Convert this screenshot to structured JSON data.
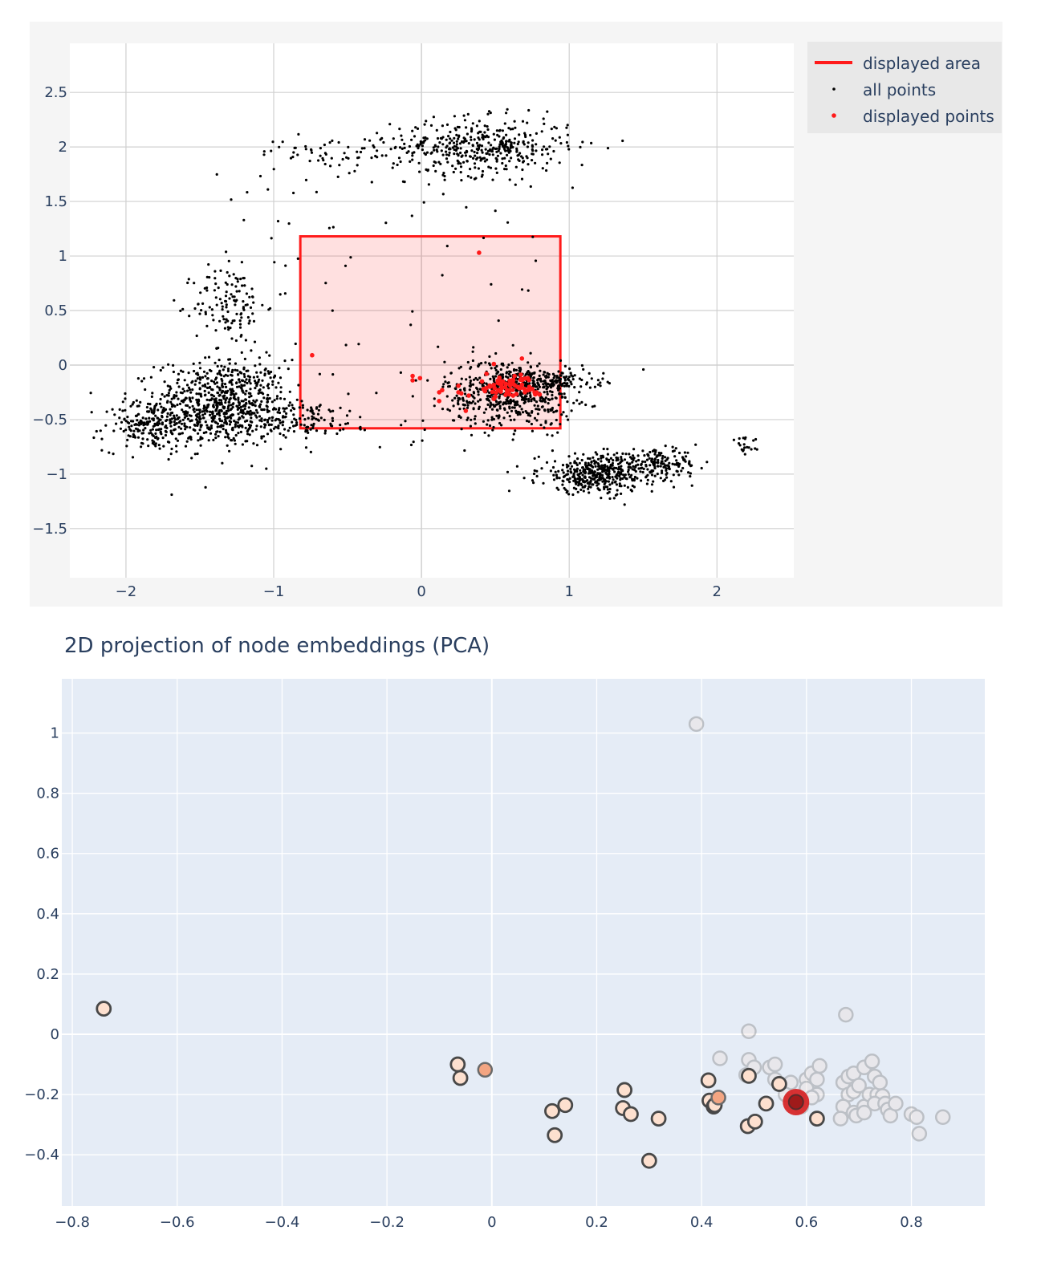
{
  "title": "2D projection of node embeddings (PCA)",
  "colors": {
    "overview_bg": "#f5f5f5",
    "overview_plot_bg": "#ffffff",
    "grid_overview": "#d0d0d0",
    "detail_plot_bg": "#e5ecf6",
    "grid_detail": "#ffffff",
    "rect": "#ff1a1a",
    "rect_fill": "rgba(255,0,0,0.12)",
    "all_points": "#000000",
    "displayed_points": "#ff1a1a",
    "legend_bg": "#e8e8e8",
    "text": "#2a3f5f",
    "marker_edge": "#444444",
    "highlight": "#d62728"
  },
  "chart_data": [
    {
      "name": "overview",
      "type": "scatter",
      "x_range": [
        -2.38,
        2.52
      ],
      "y_range": [
        -1.95,
        2.95
      ],
      "x_ticks": [
        -2,
        -1,
        0,
        1,
        2
      ],
      "x_tick_labels": [
        "−2",
        "−1",
        "0",
        "1",
        "2"
      ],
      "y_ticks": [
        2.5,
        2,
        1.5,
        1,
        0.5,
        0,
        -0.5,
        -1,
        -1.5
      ],
      "y_tick_labels": [
        "2.5",
        "2",
        "1.5",
        "1",
        "0.5",
        "0",
        "−0.5",
        "−1",
        "−1.5"
      ],
      "legend": {
        "position": "top-right",
        "entries": [
          "displayed area",
          "all points",
          "displayed points"
        ]
      },
      "displayed_area": {
        "x0": -0.82,
        "x1": 0.94,
        "y0": -0.58,
        "y1": 1.18
      },
      "clusters": [
        {
          "cx": -1.35,
          "cy": -0.35,
          "sx": 0.22,
          "sy": 0.2,
          "n": 700
        },
        {
          "cx": -1.85,
          "cy": -0.55,
          "sx": 0.15,
          "sy": 0.12,
          "n": 200
        },
        {
          "cx": -1.3,
          "cy": 0.55,
          "sx": 0.12,
          "sy": 0.18,
          "n": 120
        },
        {
          "cx": -0.9,
          "cy": -0.5,
          "sx": 0.3,
          "sy": 0.08,
          "n": 160
        },
        {
          "cx": 0.4,
          "cy": 2.0,
          "sx": 0.3,
          "sy": 0.13,
          "n": 420
        },
        {
          "cx": -0.6,
          "cy": 1.95,
          "sx": 0.25,
          "sy": 0.07,
          "n": 60
        },
        {
          "cx": 0.6,
          "cy": -0.25,
          "sx": 0.22,
          "sy": 0.15,
          "n": 600
        },
        {
          "cx": 0.85,
          "cy": -0.15,
          "sx": 0.18,
          "sy": 0.05,
          "n": 120
        },
        {
          "cx": 1.2,
          "cy": -1.0,
          "sx": 0.2,
          "sy": 0.09,
          "n": 420
        },
        {
          "cx": 1.6,
          "cy": -0.9,
          "sx": 0.14,
          "sy": 0.06,
          "n": 150
        },
        {
          "cx": 2.2,
          "cy": -0.75,
          "sx": 0.06,
          "sy": 0.04,
          "n": 20
        }
      ],
      "displayed_points": [
        {
          "x": 0.39,
          "y": 1.03
        },
        {
          "x": -0.74,
          "y": 0.09
        },
        {
          "x": 0.68,
          "y": 0.06
        },
        {
          "x": -0.06,
          "y": -0.1
        },
        {
          "x": -0.06,
          "y": -0.14
        },
        {
          "x": -0.01,
          "y": -0.12
        },
        {
          "x": 0.12,
          "y": -0.25
        },
        {
          "x": 0.14,
          "y": -0.23
        },
        {
          "x": 0.12,
          "y": -0.33
        },
        {
          "x": 0.25,
          "y": -0.19
        },
        {
          "x": 0.25,
          "y": -0.25
        },
        {
          "x": 0.27,
          "y": -0.26
        },
        {
          "x": 0.32,
          "y": -0.28
        },
        {
          "x": 0.3,
          "y": -0.42
        },
        {
          "x": 0.41,
          "y": -0.15
        },
        {
          "x": 0.42,
          "y": -0.22
        },
        {
          "x": 0.43,
          "y": -0.24
        },
        {
          "x": 0.44,
          "y": -0.21
        },
        {
          "x": 0.49,
          "y": -0.31
        },
        {
          "x": 0.5,
          "y": -0.29
        },
        {
          "x": 0.52,
          "y": -0.23
        },
        {
          "x": 0.58,
          "y": -0.23
        },
        {
          "x": 0.62,
          "y": -0.28
        },
        {
          "x": 0.6,
          "y": -0.17
        },
        {
          "x": 0.65,
          "y": -0.2
        },
        {
          "x": 0.7,
          "y": -0.25
        },
        {
          "x": 0.72,
          "y": -0.12
        },
        {
          "x": 0.75,
          "y": -0.22
        },
        {
          "x": 0.55,
          "y": -0.15
        },
        {
          "x": 0.78,
          "y": -0.26
        },
        {
          "x": 0.68,
          "y": -0.18
        },
        {
          "x": 0.8,
          "y": -0.27
        },
        {
          "x": 0.73,
          "y": -0.2
        },
        {
          "x": 0.49,
          "y": 0.01
        },
        {
          "x": 0.44,
          "y": -0.08
        },
        {
          "x": 0.63,
          "y": -0.1
        }
      ]
    },
    {
      "name": "detail",
      "type": "scatter",
      "x_range": [
        -0.82,
        0.94
      ],
      "y_range": [
        -0.57,
        1.18
      ],
      "x_ticks": [
        -0.8,
        -0.6,
        -0.4,
        -0.2,
        0,
        0.2,
        0.4,
        0.6,
        0.8
      ],
      "x_tick_labels": [
        "−0.8",
        "−0.6",
        "−0.4",
        "−0.2",
        "0",
        "0.2",
        "0.4",
        "0.6",
        "0.8"
      ],
      "y_ticks": [
        1,
        0.8,
        0.6,
        0.4,
        0.2,
        0,
        -0.2,
        -0.4
      ],
      "y_tick_labels": [
        "1",
        "0.8",
        "0.6",
        "0.4",
        "0.2",
        "0",
        "−0.2",
        "−0.4"
      ],
      "points_faded": [
        {
          "x": 0.39,
          "y": 1.03
        },
        {
          "x": 0.49,
          "y": 0.01
        },
        {
          "x": 0.675,
          "y": 0.065
        },
        {
          "x": 0.435,
          "y": -0.08
        },
        {
          "x": 0.49,
          "y": -0.085
        },
        {
          "x": 0.5,
          "y": -0.11
        },
        {
          "x": 0.485,
          "y": -0.135
        },
        {
          "x": 0.53,
          "y": -0.11
        },
        {
          "x": 0.54,
          "y": -0.1
        },
        {
          "x": 0.54,
          "y": -0.15
        },
        {
          "x": 0.57,
          "y": -0.16
        },
        {
          "x": 0.56,
          "y": -0.2
        },
        {
          "x": 0.6,
          "y": -0.15
        },
        {
          "x": 0.61,
          "y": -0.13
        },
        {
          "x": 0.62,
          "y": -0.15
        },
        {
          "x": 0.625,
          "y": -0.105
        },
        {
          "x": 0.6,
          "y": -0.18
        },
        {
          "x": 0.62,
          "y": -0.2
        },
        {
          "x": 0.61,
          "y": -0.21
        },
        {
          "x": 0.59,
          "y": -0.24
        },
        {
          "x": 0.67,
          "y": -0.16
        },
        {
          "x": 0.68,
          "y": -0.14
        },
        {
          "x": 0.69,
          "y": -0.13
        },
        {
          "x": 0.68,
          "y": -0.2
        },
        {
          "x": 0.69,
          "y": -0.19
        },
        {
          "x": 0.7,
          "y": -0.17
        },
        {
          "x": 0.67,
          "y": -0.24
        },
        {
          "x": 0.665,
          "y": -0.28
        },
        {
          "x": 0.69,
          "y": -0.26
        },
        {
          "x": 0.695,
          "y": -0.27
        },
        {
          "x": 0.71,
          "y": -0.24
        },
        {
          "x": 0.71,
          "y": -0.11
        },
        {
          "x": 0.725,
          "y": -0.09
        },
        {
          "x": 0.73,
          "y": -0.14
        },
        {
          "x": 0.72,
          "y": -0.2
        },
        {
          "x": 0.735,
          "y": -0.2
        },
        {
          "x": 0.74,
          "y": -0.16
        },
        {
          "x": 0.745,
          "y": -0.205
        },
        {
          "x": 0.73,
          "y": -0.23
        },
        {
          "x": 0.75,
          "y": -0.23
        },
        {
          "x": 0.755,
          "y": -0.25
        },
        {
          "x": 0.76,
          "y": -0.27
        },
        {
          "x": 0.77,
          "y": -0.23
        },
        {
          "x": 0.8,
          "y": -0.265
        },
        {
          "x": 0.81,
          "y": -0.275
        },
        {
          "x": 0.815,
          "y": -0.33
        },
        {
          "x": 0.86,
          "y": -0.275
        },
        {
          "x": 0.71,
          "y": -0.26
        }
      ],
      "points_neighbors": [
        {
          "x": -0.74,
          "y": 0.085
        },
        {
          "x": -0.065,
          "y": -0.1
        },
        {
          "x": -0.06,
          "y": -0.145
        },
        {
          "x": 0.115,
          "y": -0.255
        },
        {
          "x": 0.14,
          "y": -0.235
        },
        {
          "x": 0.12,
          "y": -0.335
        },
        {
          "x": 0.253,
          "y": -0.185
        },
        {
          "x": 0.25,
          "y": -0.245
        },
        {
          "x": 0.265,
          "y": -0.265
        },
        {
          "x": 0.318,
          "y": -0.28
        },
        {
          "x": 0.3,
          "y": -0.42
        },
        {
          "x": 0.413,
          "y": -0.153
        },
        {
          "x": 0.415,
          "y": -0.22
        },
        {
          "x": 0.423,
          "y": -0.24
        },
        {
          "x": 0.425,
          "y": -0.235
        },
        {
          "x": 0.49,
          "y": -0.138
        },
        {
          "x": 0.488,
          "y": -0.305
        },
        {
          "x": 0.502,
          "y": -0.29
        },
        {
          "x": 0.523,
          "y": -0.23
        },
        {
          "x": 0.548,
          "y": -0.165
        },
        {
          "x": 0.62,
          "y": -0.28
        }
      ],
      "points_strong": [
        {
          "x": -0.013,
          "y": -0.118
        },
        {
          "x": 0.432,
          "y": -0.21
        }
      ],
      "highlight_point": {
        "x": 0.58,
        "y": -0.225
      }
    }
  ]
}
